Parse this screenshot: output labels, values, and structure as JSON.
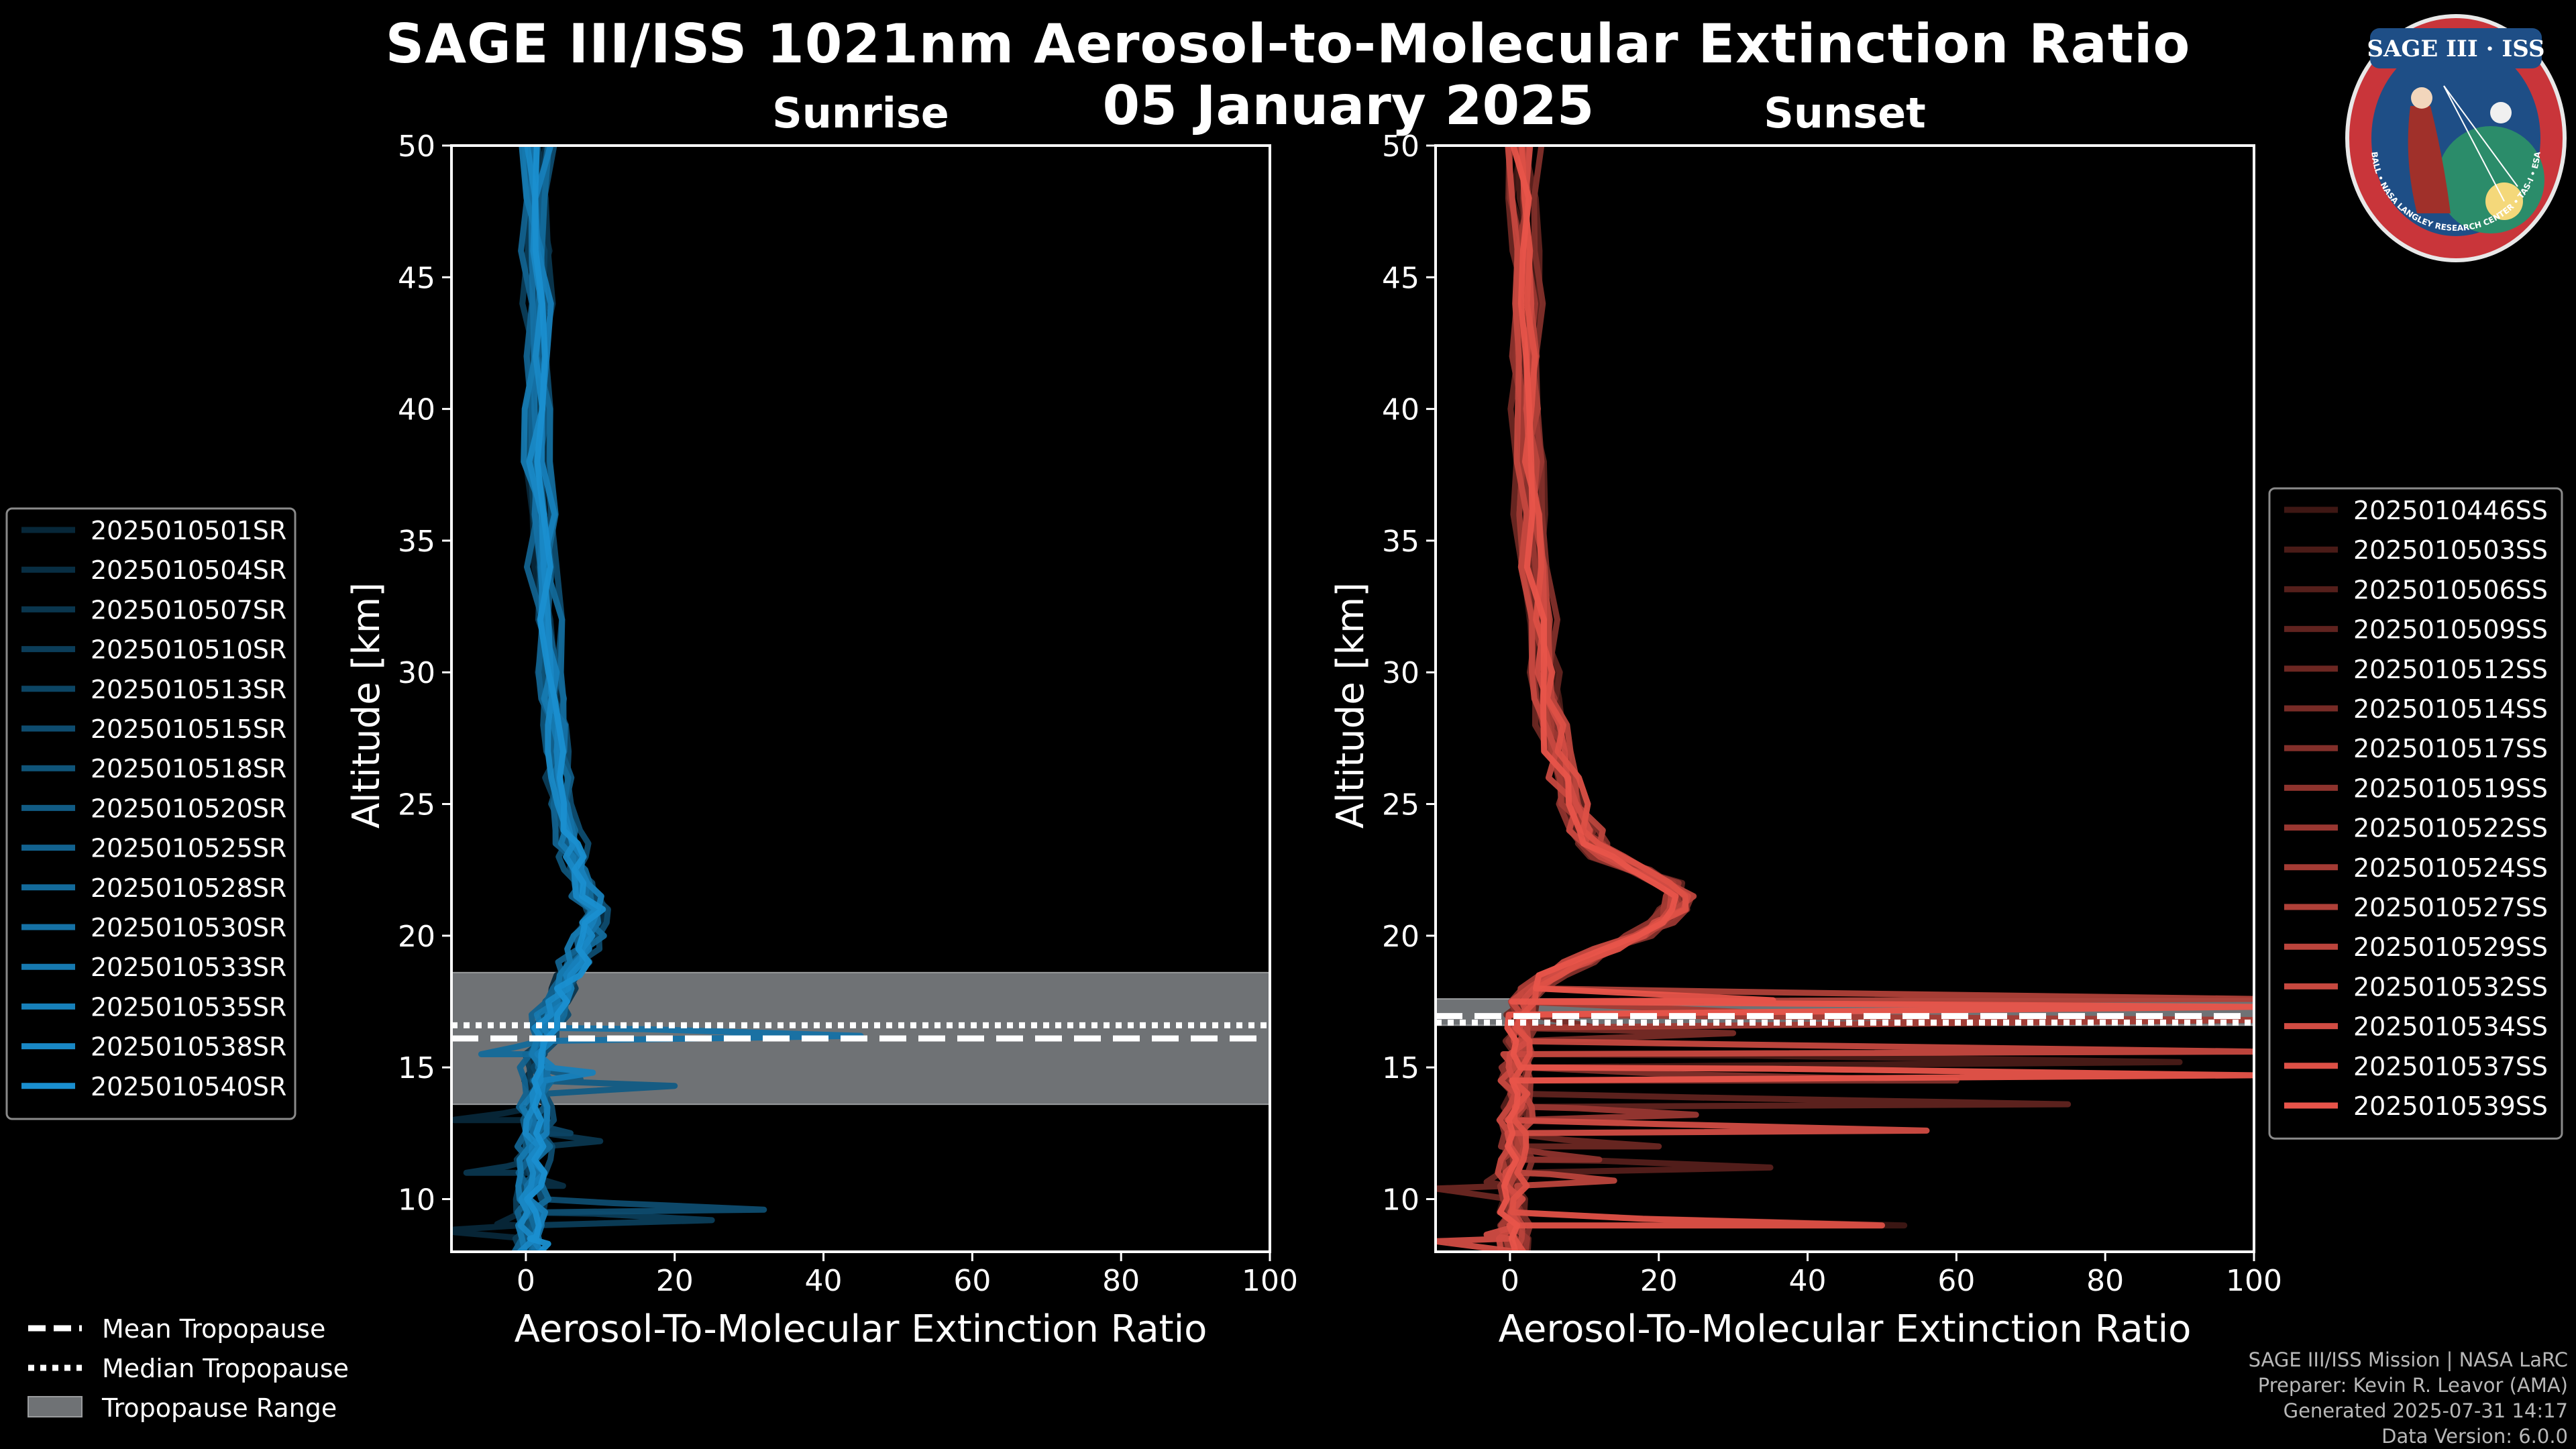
{
  "title": "SAGE III/ISS 1021nm Aerosol-to-Molecular Extinction Ratio",
  "date": "05 January 2025",
  "logo": {
    "text": "SAGE III · ISS",
    "ring_text": "BALL • NASA LANGLEY RESEARCH CENTER • TAS-I • ESA"
  },
  "credits": [
    "SAGE III/ISS Mission | NASA LaRC",
    "Preparer: Kevin R. Leavor (AMA)",
    "Generated 2025-07-31 14:17",
    "Data Version: 6.0.0"
  ],
  "tropo_legend": {
    "mean": "Mean Tropopause",
    "median": "Median Tropopause",
    "range": "Tropopause Range"
  },
  "chart_data": [
    {
      "type": "line",
      "title": "Sunrise",
      "xlabel": "Aerosol-To-Molecular Extinction Ratio",
      "ylabel": "Altitude [km]",
      "xlim": [
        -10,
        100
      ],
      "ylim": [
        8,
        50
      ],
      "xticks": [
        0,
        20,
        40,
        60,
        80,
        100
      ],
      "yticks": [
        10,
        15,
        20,
        25,
        30,
        35,
        40,
        45,
        50
      ],
      "legend_position": "left",
      "tropopause": {
        "mean": 16.1,
        "median": 16.6,
        "range": [
          13.6,
          18.6
        ]
      },
      "base_color": "#1a8fd0",
      "profile": {
        "altitude": [
          8,
          8.5,
          9,
          9.5,
          10,
          10.5,
          11,
          11.5,
          12,
          12.5,
          13,
          13.5,
          14,
          14.5,
          15,
          15.5,
          16,
          16.5,
          17,
          17.5,
          18,
          18.5,
          19,
          19.5,
          20,
          20.5,
          21,
          21.5,
          22,
          22.5,
          23,
          23.5,
          24,
          25,
          26,
          27,
          28,
          29,
          30,
          32,
          34,
          36,
          38,
          40,
          42,
          44,
          46,
          48,
          50
        ],
        "ratio": [
          0.5,
          0.5,
          0.6,
          0.6,
          0.6,
          0.7,
          0.8,
          0.8,
          0.9,
          1,
          1.1,
          1.2,
          1.3,
          1.4,
          1.5,
          1.7,
          2,
          2.4,
          3,
          3.8,
          4.8,
          5.8,
          6.6,
          7.3,
          8,
          8.6,
          9,
          8.2,
          7.2,
          6.5,
          6,
          5.7,
          5.5,
          5,
          4.5,
          4.1,
          3.7,
          3.3,
          3,
          2.5,
          2,
          1.8,
          1.6,
          1.5,
          1.5,
          1.5,
          1.4,
          1.3,
          1.2
        ]
      },
      "events": [
        {
          "name": "2025010501SR",
          "shift": -0.5,
          "spikes": [
            {
              "alt": 8.8,
              "value": -12
            },
            {
              "alt": 13,
              "value": -10
            }
          ]
        },
        {
          "name": "2025010504SR",
          "shift": 0.5,
          "spikes": [
            {
              "alt": 10.5,
              "value": 5
            }
          ]
        },
        {
          "name": "2025010507SR",
          "shift": 1.0,
          "spikes": [
            {
              "alt": 11,
              "value": -8
            },
            {
              "alt": 12.2,
              "value": 10
            }
          ]
        },
        {
          "name": "2025010510SR",
          "shift": -0.8,
          "spikes": [
            {
              "alt": 9.2,
              "value": 25
            }
          ]
        },
        {
          "name": "2025010513SR",
          "shift": 0.2,
          "spikes": [
            {
              "alt": 12.5,
              "value": 6
            }
          ]
        },
        {
          "name": "2025010515SR",
          "shift": 1.5,
          "spikes": [
            {
              "alt": 9.6,
              "value": 32
            }
          ]
        },
        {
          "name": "2025010518SR",
          "shift": -0.3,
          "spikes": []
        },
        {
          "name": "2025010520SR",
          "shift": 0.8,
          "spikes": [
            {
              "alt": 14.3,
              "value": 20
            }
          ]
        },
        {
          "name": "2025010525SR",
          "shift": -1.0,
          "spikes": []
        },
        {
          "name": "2025010528SR",
          "shift": 1.2,
          "spikes": [
            {
              "alt": 15.5,
              "value": -6
            }
          ]
        },
        {
          "name": "2025010530SR",
          "shift": 0.3,
          "spikes": [
            {
              "alt": 16.2,
              "value": 45
            }
          ]
        },
        {
          "name": "2025010533SR",
          "shift": -0.6,
          "spikes": []
        },
        {
          "name": "2025010535SR",
          "shift": 0.9,
          "spikes": [
            {
              "alt": 14.8,
              "value": 9
            }
          ]
        },
        {
          "name": "2025010538SR",
          "shift": -0.2,
          "spikes": []
        },
        {
          "name": "2025010540SR",
          "shift": 0.6,
          "spikes": [
            {
              "alt": 8.3,
              "value": 3
            }
          ]
        }
      ]
    },
    {
      "type": "line",
      "title": "Sunset",
      "xlabel": "Aerosol-To-Molecular Extinction Ratio",
      "ylabel": "Altitude [km]",
      "xlim": [
        -10,
        100
      ],
      "ylim": [
        8,
        50
      ],
      "xticks": [
        0,
        20,
        40,
        60,
        80,
        100
      ],
      "yticks": [
        10,
        15,
        20,
        25,
        30,
        35,
        40,
        45,
        50
      ],
      "legend_position": "right",
      "tropopause": {
        "mean": 16.95,
        "median": 16.7,
        "range": [
          16.6,
          17.6
        ]
      },
      "base_color": "#e8544a",
      "profile": {
        "altitude": [
          8,
          8.5,
          9,
          9.5,
          10,
          10.5,
          11,
          11.5,
          12,
          12.5,
          13,
          13.5,
          14,
          14.5,
          15,
          15.5,
          16,
          16.5,
          17,
          17.5,
          18,
          18.5,
          19,
          19.5,
          20,
          20.5,
          21,
          21.5,
          22,
          22.5,
          23,
          23.5,
          24,
          25,
          26,
          27,
          28,
          29,
          30,
          32,
          34,
          36,
          38,
          40,
          42,
          44,
          46,
          48,
          50
        ],
        "ratio": [
          0.3,
          0.3,
          0.3,
          0.3,
          0.4,
          0.4,
          0.4,
          0.5,
          0.5,
          0.5,
          0.6,
          0.6,
          0.7,
          0.7,
          0.8,
          0.9,
          1,
          1.1,
          1.3,
          1.8,
          3,
          5.5,
          9,
          13,
          17,
          20,
          22,
          22.5,
          21,
          17,
          13,
          11,
          10,
          8.5,
          7.2,
          6.2,
          5.5,
          5,
          4.5,
          3.8,
          3.2,
          2.7,
          2.3,
          2,
          2,
          2,
          1.9,
          1.8,
          1.8
        ]
      },
      "events": [
        {
          "name": "2025010446SS",
          "shift": -0.5,
          "spikes": [
            {
              "alt": 9,
              "value": 53
            }
          ]
        },
        {
          "name": "2025010503SS",
          "shift": 0.6,
          "spikes": [
            {
              "alt": 15.2,
              "value": 90
            }
          ]
        },
        {
          "name": "2025010506SS",
          "shift": -0.2,
          "spikes": [
            {
              "alt": 11.2,
              "value": 35
            }
          ]
        },
        {
          "name": "2025010509SS",
          "shift": 1.0,
          "spikes": [
            {
              "alt": 13.6,
              "value": 75
            }
          ]
        },
        {
          "name": "2025010512SS",
          "shift": -1.0,
          "spikes": [
            {
              "alt": 10.4,
              "value": -10
            },
            {
              "alt": 12,
              "value": 20
            }
          ]
        },
        {
          "name": "2025010514SS",
          "shift": 0.3,
          "spikes": [
            {
              "alt": 16.3,
              "value": 30
            }
          ]
        },
        {
          "name": "2025010517SS",
          "shift": 1.3,
          "spikes": [
            {
              "alt": 14.5,
              "value": 60
            }
          ]
        },
        {
          "name": "2025010519SS",
          "shift": -0.7,
          "spikes": [
            {
              "alt": 11.5,
              "value": 12
            }
          ]
        },
        {
          "name": "2025010522SS",
          "shift": 0.8,
          "spikes": [
            {
              "alt": 13.2,
              "value": 25
            }
          ]
        },
        {
          "name": "2025010524SS",
          "shift": -0.3,
          "spikes": [
            {
              "alt": 16.8,
              "value": 100
            }
          ]
        },
        {
          "name": "2025010527SS",
          "shift": 0.5,
          "spikes": [
            {
              "alt": 17.6,
              "value": 100
            }
          ]
        },
        {
          "name": "2025010529SS",
          "shift": 1.2,
          "spikes": [
            {
              "alt": 10.7,
              "value": 14
            }
          ]
        },
        {
          "name": "2025010532SS",
          "shift": -0.8,
          "spikes": [
            {
              "alt": 15.6,
              "value": 100
            }
          ]
        },
        {
          "name": "2025010534SS",
          "shift": 0.2,
          "spikes": [
            {
              "alt": 12.6,
              "value": 56
            },
            {
              "alt": 8.4,
              "value": -10
            }
          ]
        },
        {
          "name": "2025010537SS",
          "shift": 0.9,
          "spikes": [
            {
              "alt": 9.0,
              "value": 50
            }
          ]
        },
        {
          "name": "2025010539SS",
          "shift": -0.4,
          "spikes": [
            {
              "alt": 14.7,
              "value": 100
            },
            {
              "alt": 17.3,
              "value": 100
            }
          ]
        }
      ]
    }
  ]
}
